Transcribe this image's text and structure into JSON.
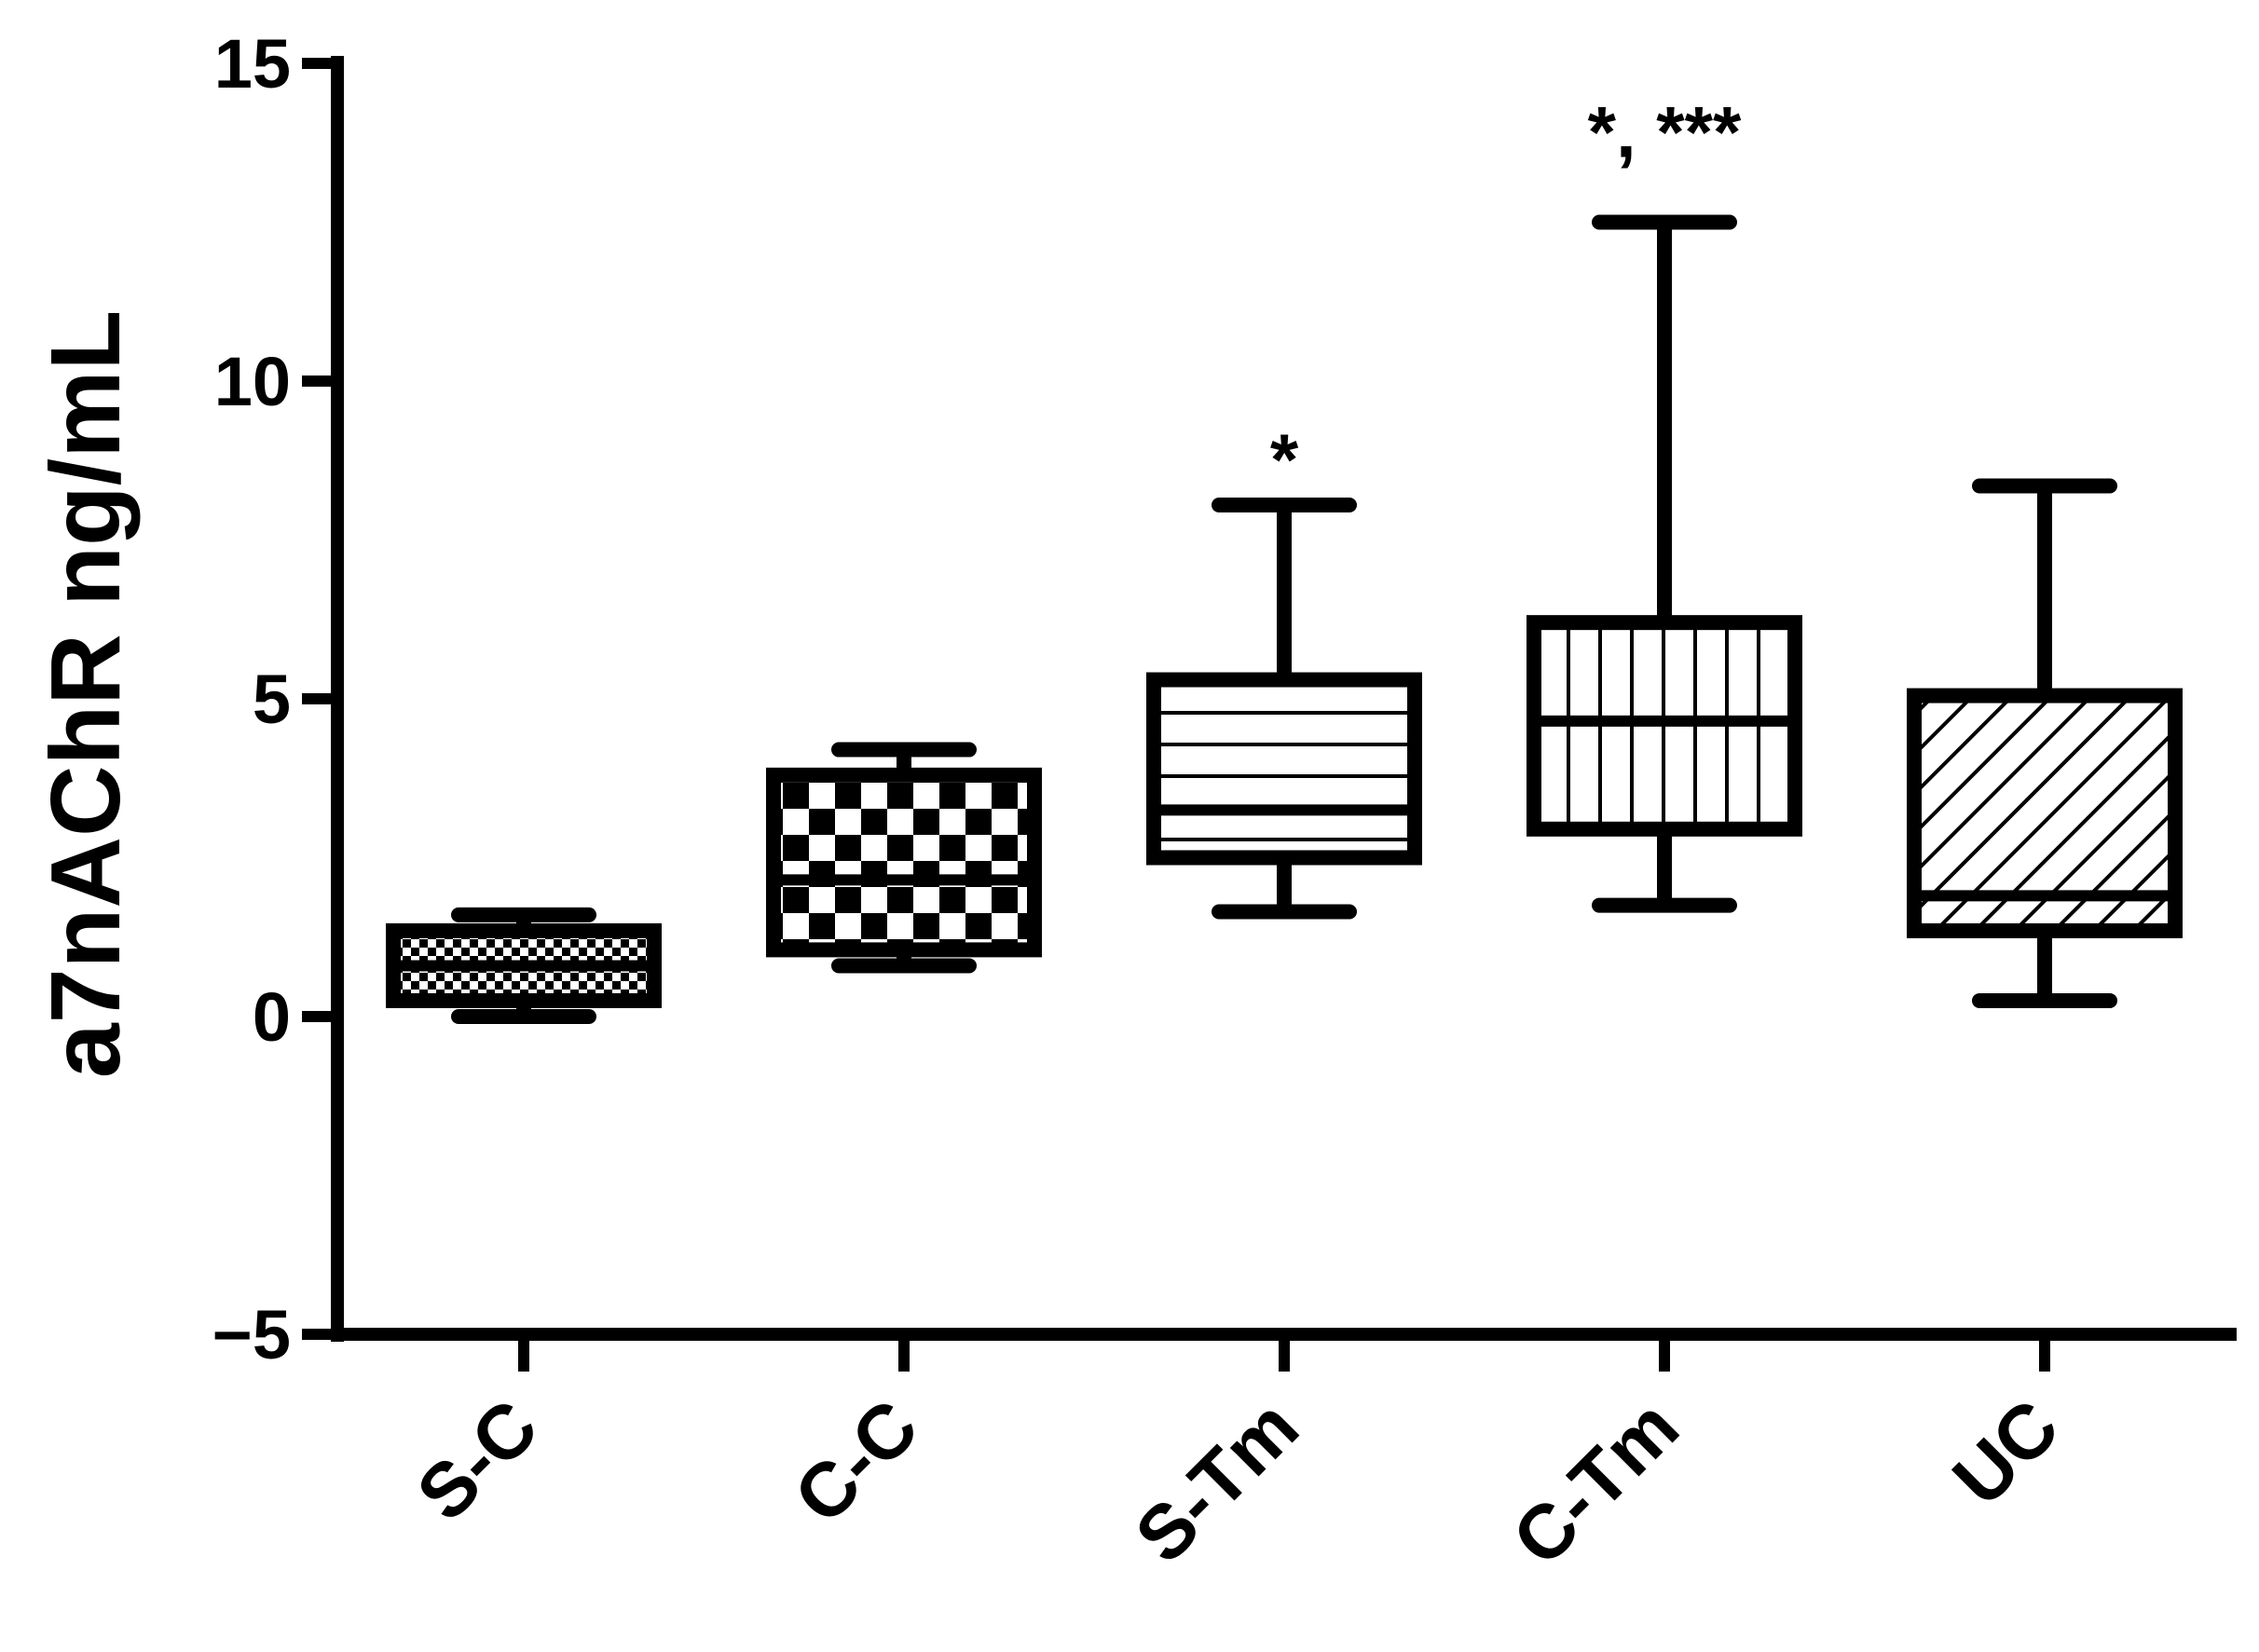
{
  "chart_data": {
    "type": "boxplot",
    "ylabel": "a7nAChR ng/mL",
    "xlabel": "",
    "ylim": [
      -5,
      15
    ],
    "yticks": [
      -5,
      0,
      5,
      10,
      15
    ],
    "ytick_labels": [
      "−5",
      "0",
      "5",
      "10",
      "15"
    ],
    "categories": [
      "S-C",
      "C-C",
      "S-Tm",
      "C-Tm",
      "UC"
    ],
    "boxes": [
      {
        "category": "S-C",
        "min": 0.0,
        "q1": 0.25,
        "median": 0.8,
        "q3": 1.35,
        "max": 1.6,
        "fill_pattern": "small-checker",
        "significance": ""
      },
      {
        "category": "C-C",
        "min": 0.8,
        "q1": 1.05,
        "median": 2.15,
        "q3": 3.8,
        "max": 4.2,
        "fill_pattern": "checker",
        "significance": ""
      },
      {
        "category": "S-Tm",
        "min": 1.65,
        "q1": 2.5,
        "median": 3.25,
        "q3": 5.3,
        "max": 8.05,
        "fill_pattern": "horizontal-lines",
        "significance": "*"
      },
      {
        "category": "C-Tm",
        "min": 1.75,
        "q1": 2.95,
        "median": 4.65,
        "q3": 6.2,
        "max": 12.5,
        "fill_pattern": "vertical-lines",
        "significance": "*, ***"
      },
      {
        "category": "UC",
        "min": 0.25,
        "q1": 1.35,
        "median": 1.9,
        "q3": 5.05,
        "max": 8.35,
        "fill_pattern": "diagonal-lines",
        "significance": ""
      }
    ],
    "grid": false,
    "legend": "none"
  },
  "colors": {
    "foreground": "#000000",
    "background": "#ffffff"
  }
}
